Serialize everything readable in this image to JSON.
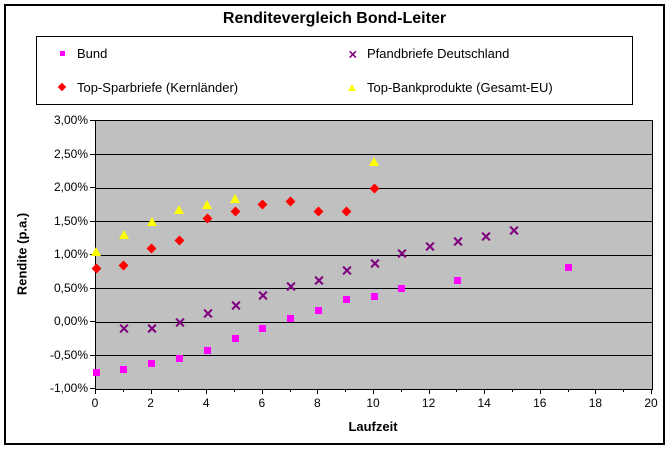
{
  "chart_data": {
    "type": "scatter",
    "title": "Renditevergleich Bond-Leiter",
    "xlabel": "Laufzeit",
    "ylabel": "Rendite (p.a.)",
    "plot_bg_color": "#C0C0C0",
    "grid": true,
    "legend_position": "top",
    "x_axis": {
      "min": 0,
      "max": 20,
      "major_ticks": [
        0,
        2,
        4,
        6,
        8,
        10,
        12,
        14,
        16,
        18,
        20
      ],
      "minor_ticks": [
        1,
        3,
        5,
        7,
        9,
        11,
        13,
        15,
        17,
        19
      ]
    },
    "y_axis": {
      "min_percent": -1.0,
      "max_percent": 3.0,
      "ticks": [
        {
          "v": 3.0,
          "label": "3,00%"
        },
        {
          "v": 2.5,
          "label": "2,50%"
        },
        {
          "v": 2.0,
          "label": "2,00%"
        },
        {
          "v": 1.5,
          "label": "1,50%"
        },
        {
          "v": 1.0,
          "label": "1,00%"
        },
        {
          "v": 0.5,
          "label": "0,50%"
        },
        {
          "v": 0.0,
          "label": "0,00%"
        },
        {
          "v": -0.5,
          "label": "-0,50%"
        },
        {
          "v": -1.0,
          "label": "-1,00%"
        }
      ]
    },
    "series": [
      {
        "name": "Bund",
        "marker": "square",
        "color": "#FF00FF",
        "points": [
          [
            0,
            -0.75
          ],
          [
            1,
            -0.71
          ],
          [
            2,
            -0.62
          ],
          [
            3,
            -0.55
          ],
          [
            4,
            -0.42
          ],
          [
            5,
            -0.25
          ],
          [
            6,
            -0.1
          ],
          [
            7,
            0.05
          ],
          [
            8,
            0.17
          ],
          [
            9,
            0.33
          ],
          [
            10,
            0.38
          ],
          [
            11,
            0.5
          ],
          [
            13,
            0.62
          ],
          [
            17,
            0.82
          ]
        ]
      },
      {
        "name": "Pfandbriefe Deutschland",
        "marker": "x",
        "color": "#800080",
        "points": [
          [
            1,
            -0.1
          ],
          [
            2,
            -0.09
          ],
          [
            3,
            0.0
          ],
          [
            4,
            0.12
          ],
          [
            5,
            0.25
          ],
          [
            6,
            0.39
          ],
          [
            7,
            0.53
          ],
          [
            8,
            0.62
          ],
          [
            9,
            0.77
          ],
          [
            10,
            0.88
          ],
          [
            11,
            1.02
          ],
          [
            12,
            1.12
          ],
          [
            13,
            1.2
          ],
          [
            14,
            1.27
          ],
          [
            15,
            1.37
          ]
        ]
      },
      {
        "name": "Top-Sparbriefe (Kernländer)",
        "marker": "diamond",
        "color": "#FF0000",
        "points": [
          [
            0,
            0.8
          ],
          [
            1,
            0.85
          ],
          [
            2,
            1.1
          ],
          [
            3,
            1.22
          ],
          [
            4,
            1.55
          ],
          [
            5,
            1.65
          ],
          [
            6,
            1.75
          ],
          [
            7,
            1.8
          ],
          [
            8,
            1.65
          ],
          [
            9,
            1.65
          ],
          [
            10,
            2.0
          ]
        ]
      },
      {
        "name": "Top-Bankprodukte (Gesamt-EU)",
        "marker": "triangle",
        "color": "#FFFF00",
        "points": [
          [
            0,
            1.05
          ],
          [
            1,
            1.3
          ],
          [
            2,
            1.5
          ],
          [
            3,
            1.68
          ],
          [
            4,
            1.75
          ],
          [
            5,
            1.85
          ],
          [
            10,
            2.4
          ]
        ]
      }
    ]
  }
}
